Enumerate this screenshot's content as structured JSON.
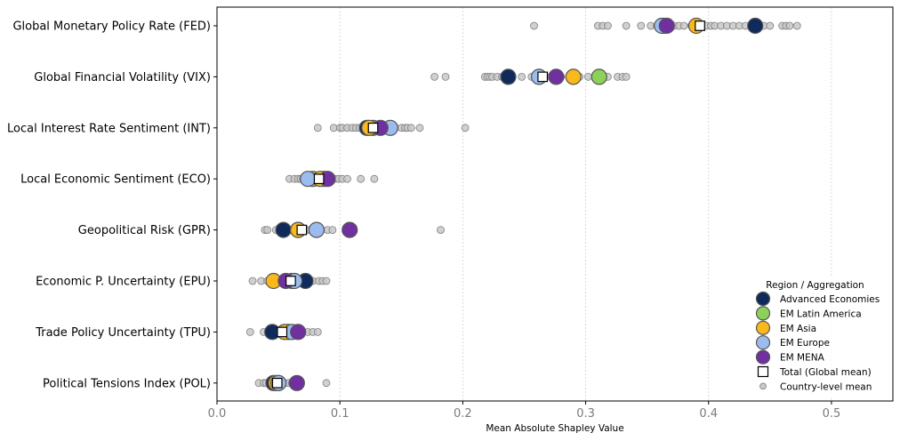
{
  "chart_data": {
    "type": "scatter",
    "title": "",
    "xlabel": "Mean Absolute Shapley Value",
    "ylabel": "",
    "xlim": [
      0.0,
      0.55
    ],
    "xticks": [
      "0.0",
      "0.1",
      "0.2",
      "0.3",
      "0.4",
      "0.5"
    ],
    "xtick_values": [
      0.0,
      0.1,
      0.2,
      0.3,
      0.4,
      0.5
    ],
    "grid": "vertical dotted",
    "categories": [
      "Global Monetary Policy Rate (FED)",
      "Global Financial Volatility (VIX)",
      "Local Interest Rate Sentiment (INT)",
      "Local Economic Sentiment (ECO)",
      "Geopolitical Risk (GPR)",
      "Economic P. Uncertainty (EPU)",
      "Trade Policy Uncertainty (TPU)",
      "Political Tensions Index (POL)"
    ],
    "country_points": [
      [
        0.258,
        0.31,
        0.314,
        0.318,
        0.333,
        0.345,
        0.353,
        0.358,
        0.362,
        0.368,
        0.372,
        0.376,
        0.38,
        0.386,
        0.392,
        0.398,
        0.402,
        0.405,
        0.41,
        0.415,
        0.42,
        0.425,
        0.43,
        0.438,
        0.445,
        0.45,
        0.46,
        0.463,
        0.466,
        0.472
      ],
      [
        0.177,
        0.186,
        0.218,
        0.22,
        0.222,
        0.224,
        0.228,
        0.232,
        0.236,
        0.24,
        0.248,
        0.256,
        0.262,
        0.268,
        0.274,
        0.28,
        0.288,
        0.295,
        0.302,
        0.31,
        0.318,
        0.326,
        0.33,
        0.333
      ],
      [
        0.082,
        0.095,
        0.1,
        0.102,
        0.106,
        0.11,
        0.113,
        0.116,
        0.12,
        0.124,
        0.128,
        0.131,
        0.135,
        0.14,
        0.145,
        0.15,
        0.153,
        0.155,
        0.158,
        0.165,
        0.202
      ],
      [
        0.059,
        0.063,
        0.066,
        0.068,
        0.07,
        0.072,
        0.075,
        0.078,
        0.082,
        0.085,
        0.088,
        0.09,
        0.093,
        0.096,
        0.099,
        0.102,
        0.106,
        0.117,
        0.128
      ],
      [
        0.039,
        0.041,
        0.048,
        0.052,
        0.056,
        0.06,
        0.063,
        0.066,
        0.07,
        0.073,
        0.076,
        0.08,
        0.085,
        0.09,
        0.094,
        0.182
      ],
      [
        0.029,
        0.036,
        0.041,
        0.045,
        0.048,
        0.051,
        0.054,
        0.057,
        0.06,
        0.063,
        0.066,
        0.07,
        0.074,
        0.078,
        0.083,
        0.086,
        0.089
      ],
      [
        0.027,
        0.038,
        0.042,
        0.045,
        0.048,
        0.051,
        0.054,
        0.057,
        0.06,
        0.063,
        0.066,
        0.07,
        0.074,
        0.078,
        0.082
      ],
      [
        0.034,
        0.038,
        0.04,
        0.043,
        0.045,
        0.047,
        0.049,
        0.051,
        0.053,
        0.055,
        0.058,
        0.061,
        0.064,
        0.066,
        0.089
      ]
    ],
    "series": [
      {
        "name": "Advanced Economies",
        "color": "#102a5c",
        "values": [
          0.438,
          0.237,
          0.122,
          0.087,
          0.054,
          0.072,
          0.045,
          0.046
        ]
      },
      {
        "name": "EM Latin America",
        "color": "#8ed15a",
        "values": [
          0.364,
          0.311,
          0.127,
          0.078,
          0.066,
          0.061,
          0.058,
          0.05
        ]
      },
      {
        "name": "EM Asia",
        "color": "#f9b81c",
        "values": [
          0.39,
          0.29,
          0.124,
          0.084,
          0.066,
          0.046,
          0.055,
          0.048
        ]
      },
      {
        "name": "EM Europe",
        "color": "#9cbcf0",
        "values": [
          0.362,
          0.262,
          0.141,
          0.074,
          0.081,
          0.063,
          0.061,
          0.05
        ]
      },
      {
        "name": "EM MENA",
        "color": "#7030a0",
        "values": [
          0.366,
          0.276,
          0.133,
          0.09,
          0.108,
          0.056,
          0.066,
          0.065
        ]
      }
    ],
    "total_global_mean": [
      0.393,
      0.265,
      0.127,
      0.083,
      0.069,
      0.06,
      0.053,
      0.049
    ],
    "legend": {
      "title": "Region / Aggregation",
      "placement": "lower-right",
      "entries": [
        "Advanced Economies",
        "EM Latin America",
        "EM Asia",
        "EM Europe",
        "EM MENA",
        "Total (Global mean)",
        "Country-level mean"
      ]
    }
  }
}
